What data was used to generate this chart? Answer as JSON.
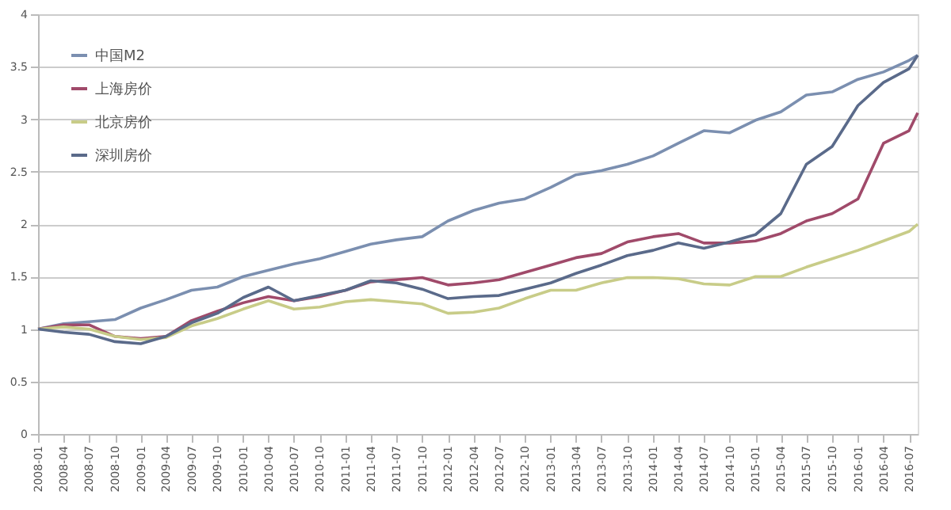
{
  "chart_data": {
    "type": "line",
    "x": [
      "2008-01",
      "2008-04",
      "2008-07",
      "2008-10",
      "2009-01",
      "2009-04",
      "2009-07",
      "2009-10",
      "2010-01",
      "2010-04",
      "2010-07",
      "2010-10",
      "2011-01",
      "2011-04",
      "2011-07",
      "2011-10",
      "2012-01",
      "2012-04",
      "2012-07",
      "2012-10",
      "2013-01",
      "2013-04",
      "2013-07",
      "2013-10",
      "2014-01",
      "2014-04",
      "2014-07",
      "2014-10",
      "2015-01",
      "2015-04",
      "2015-07",
      "2015-10",
      "2016-01",
      "2016-04",
      "2016-07",
      "2016-08"
    ],
    "series": [
      {
        "name": "中国M2",
        "color": "#7b8fb0",
        "values": [
          1.0,
          1.05,
          1.07,
          1.09,
          1.2,
          1.28,
          1.37,
          1.4,
          1.5,
          1.56,
          1.62,
          1.67,
          1.74,
          1.81,
          1.85,
          1.88,
          2.03,
          2.13,
          2.2,
          2.24,
          2.35,
          2.47,
          2.51,
          2.57,
          2.65,
          2.77,
          2.89,
          2.87,
          2.99,
          3.07,
          3.23,
          3.26,
          3.38,
          3.45,
          3.56,
          3.61
        ]
      },
      {
        "name": "上海房价",
        "color": "#a04a6a",
        "values": [
          1.0,
          1.04,
          1.04,
          0.93,
          0.91,
          0.93,
          1.08,
          1.17,
          1.25,
          1.31,
          1.27,
          1.31,
          1.37,
          1.45,
          1.47,
          1.49,
          1.42,
          1.44,
          1.47,
          1.54,
          1.61,
          1.68,
          1.72,
          1.83,
          1.88,
          1.91,
          1.82,
          1.82,
          1.84,
          1.91,
          2.03,
          2.1,
          2.24,
          2.77,
          2.89,
          3.06
        ]
      },
      {
        "name": "北京房价",
        "color": "#c8cc88",
        "values": [
          1.0,
          1.02,
          1.0,
          0.93,
          0.9,
          0.92,
          1.03,
          1.1,
          1.19,
          1.27,
          1.19,
          1.21,
          1.26,
          1.28,
          1.26,
          1.24,
          1.15,
          1.16,
          1.2,
          1.29,
          1.37,
          1.37,
          1.44,
          1.49,
          1.49,
          1.48,
          1.43,
          1.42,
          1.5,
          1.5,
          1.59,
          1.67,
          1.75,
          1.84,
          1.93,
          2.0
        ]
      },
      {
        "name": "深圳房价",
        "color": "#5a6a8a",
        "values": [
          1.0,
          0.97,
          0.95,
          0.88,
          0.86,
          0.93,
          1.06,
          1.15,
          1.3,
          1.4,
          1.27,
          1.32,
          1.37,
          1.46,
          1.44,
          1.38,
          1.29,
          1.31,
          1.32,
          1.38,
          1.44,
          1.53,
          1.61,
          1.7,
          1.75,
          1.82,
          1.77,
          1.83,
          1.9,
          2.1,
          2.57,
          2.74,
          3.13,
          3.35,
          3.48,
          3.61
        ]
      }
    ],
    "xlim": [
      "2008-01",
      "2016-08"
    ],
    "xticks": [
      "2008-01",
      "2008-04",
      "2008-07",
      "2008-10",
      "2009-01",
      "2009-04",
      "2009-07",
      "2009-10",
      "2010-01",
      "2010-04",
      "2010-07",
      "2010-10",
      "2011-01",
      "2011-04",
      "2011-07",
      "2011-10",
      "2012-01",
      "2012-04",
      "2012-07",
      "2012-10",
      "2013-01",
      "2013-04",
      "2013-07",
      "2013-10",
      "2014-01",
      "2014-04",
      "2014-07",
      "2014-10",
      "2015-01",
      "2015-04",
      "2015-07",
      "2015-10",
      "2016-01",
      "2016-04",
      "2016-07"
    ],
    "ylim": [
      0,
      4
    ],
    "yticks": [
      0,
      0.5,
      1,
      1.5,
      2,
      2.5,
      3,
      3.5,
      4
    ],
    "grid": "y",
    "legend": "top left",
    "marker": "none",
    "line_style": "solid"
  }
}
